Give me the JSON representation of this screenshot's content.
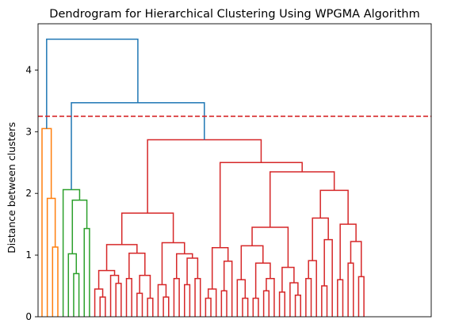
{
  "chart_data": {
    "type": "dendrogram",
    "title": "Dendrogram for Hierarchical Clustering Using WPGMA Algorithm",
    "xlabel": "",
    "ylabel": "Distance between clusters",
    "ylim": [
      0,
      4.75
    ],
    "y_ticks": [
      0,
      1,
      2,
      3,
      4
    ],
    "y_tick_labels": [
      "0",
      "1",
      "2",
      "3",
      "4"
    ],
    "x_tick_labels": [],
    "num_leaves": 74,
    "grid": false,
    "threshold": {
      "value": 3.25,
      "color": "#d62728",
      "style": "dashed"
    },
    "colors": {
      "above_threshold": "#1f77b4",
      "cluster_1": "#ff7f0e",
      "cluster_2": "#2ca02c",
      "cluster_3": "#d62728"
    },
    "top_merges": [
      {
        "height": 4.5,
        "joins": "cluster_1 + (cluster_2 + cluster_3)"
      },
      {
        "height": 3.47,
        "joins": "cluster_2 + cluster_3"
      },
      {
        "height": 3.05,
        "joins": "cluster_1 internal top"
      },
      {
        "height": 2.87,
        "joins": "cluster_3 internal top"
      },
      {
        "height": 2.06,
        "joins": "cluster_2 internal top"
      }
    ],
    "clusters": [
      {
        "name": "cluster_1",
        "color": "#ff7f0e",
        "leaves": 4,
        "top_height": 3.05
      },
      {
        "name": "cluster_2",
        "color": "#2ca02c",
        "leaves": 6,
        "top_height": 2.06
      },
      {
        "name": "cluster_3",
        "color": "#d62728",
        "leaves": 64,
        "top_height": 2.87
      }
    ]
  }
}
